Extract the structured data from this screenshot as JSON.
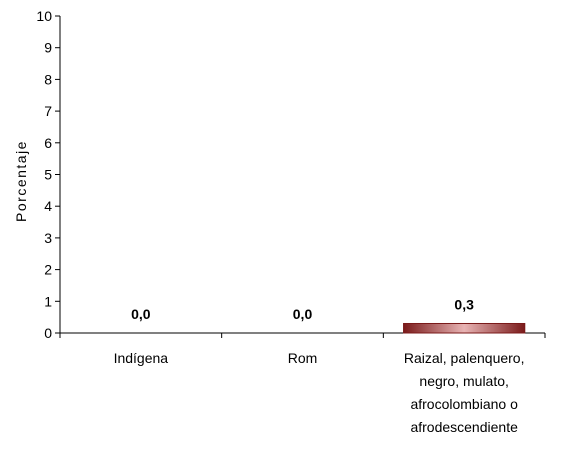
{
  "chart_data": {
    "type": "bar",
    "title": "",
    "xlabel": "",
    "ylabel": "Porcentaje",
    "ylim": [
      0,
      10
    ],
    "yticks": [
      0,
      1,
      2,
      3,
      4,
      5,
      6,
      7,
      8,
      9,
      10
    ],
    "ytick_labels": [
      "0",
      "1",
      "2",
      "3",
      "4",
      "5",
      "6",
      "7",
      "8",
      "9",
      "10"
    ],
    "grid": false,
    "legend": "none",
    "categories": [
      "Indígena",
      "Rom",
      "Raizal, palenquero, negro, mulato, afrocolombiano o afrodescendiente"
    ],
    "category_lines": [
      [
        "Indígena"
      ],
      [
        "Rom"
      ],
      [
        "Raizal, palenquero,",
        "negro, mulato,",
        "afrocolombiano o",
        "afrodescendiente"
      ]
    ],
    "values": [
      0.0,
      0.0,
      0.3
    ],
    "data_labels": [
      "0,0",
      "0,0",
      "0,3"
    ],
    "colors": {
      "bar_dark": "#7a1a1a",
      "bar_mid": "#b04444",
      "bar_light": "#e8b4b4",
      "axis": "#000000"
    }
  }
}
